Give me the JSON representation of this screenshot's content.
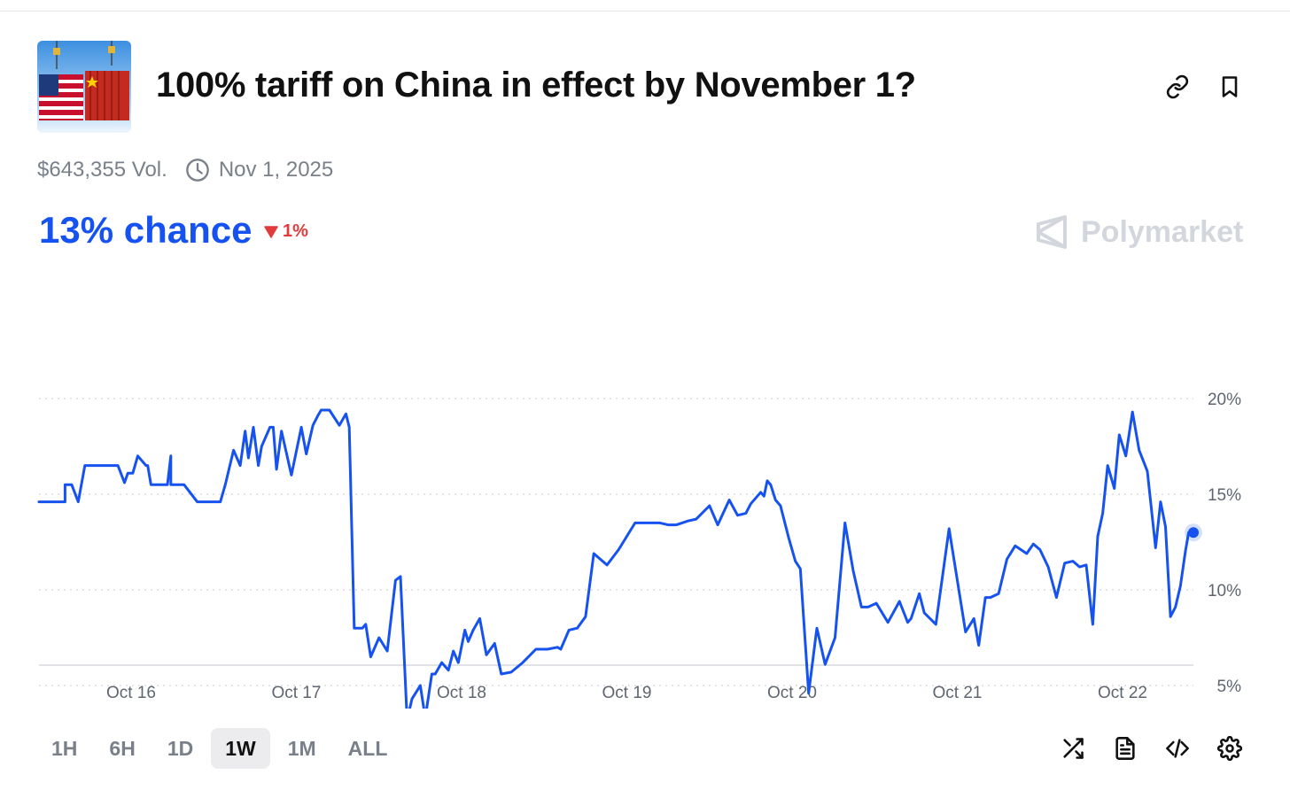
{
  "market": {
    "title": "100% tariff on China in effect by November 1?",
    "volume": "$643,355 Vol.",
    "end_date": "Nov 1, 2025",
    "chance_label": "13% chance",
    "change_label": "1%",
    "brand": "Polymarket"
  },
  "icons": {
    "copy_link": "link-icon",
    "bookmark": "bookmark-icon",
    "clock": "clock-icon",
    "shuffle": "shuffle-icon",
    "document": "document-icon",
    "embed": "code-icon",
    "settings": "gear-icon"
  },
  "time_ranges": [
    {
      "label": "1H",
      "active": false
    },
    {
      "label": "6H",
      "active": false
    },
    {
      "label": "1D",
      "active": false
    },
    {
      "label": "1W",
      "active": true
    },
    {
      "label": "1M",
      "active": false
    },
    {
      "label": "ALL",
      "active": false
    }
  ],
  "colors": {
    "accent": "#1652f0",
    "line": "#1652f0",
    "negative": "#e23b3b",
    "muted": "#7a808a"
  },
  "chart_data": {
    "type": "line",
    "x_ticks": [
      "Oct 16",
      "Oct 17",
      "Oct 18",
      "Oct 19",
      "Oct 20",
      "Oct 21",
      "Oct 22"
    ],
    "y_ticks": [
      20,
      15,
      10,
      5
    ],
    "y_tick_labels": [
      "20%",
      "15%",
      "10%",
      "5%"
    ],
    "ylim": [
      1,
      21
    ],
    "xlim": [
      15.44,
      22.44
    ],
    "grid": true,
    "series": [
      {
        "x": [
          15.44,
          15.6,
          15.6,
          15.64,
          15.68,
          15.72,
          15.79,
          15.82,
          15.92,
          15.96,
          15.98,
          16.01,
          16.04,
          16.09,
          16.1,
          16.12,
          16.17,
          16.22,
          16.24,
          16.24,
          16.29,
          16.32,
          16.4,
          16.43,
          16.43,
          16.47,
          16.52,
          16.54,
          16.57,
          16.62,
          16.66,
          16.69,
          16.71,
          16.74,
          16.77,
          16.79,
          16.84,
          16.86,
          16.88,
          16.91,
          16.97,
          17.03,
          17.06,
          17.1,
          17.13,
          17.15,
          17.2,
          17.26,
          17.3,
          17.32,
          17.35,
          17.4,
          17.42,
          17.45,
          17.5,
          17.55,
          17.6,
          17.63,
          17.67,
          17.7,
          17.75,
          17.78,
          17.82,
          17.84,
          17.88,
          17.92,
          17.95,
          17.98,
          18.02,
          18.04,
          18.07,
          18.11,
          18.15,
          18.2,
          18.24,
          18.3,
          18.37,
          18.45,
          18.52,
          18.58,
          18.6,
          18.65,
          18.7,
          18.75,
          18.8,
          18.88,
          18.95,
          19.05,
          19.12,
          19.2,
          19.25,
          19.3,
          19.37,
          19.42,
          19.5,
          19.55,
          19.62,
          19.67,
          19.72,
          19.75,
          19.78,
          19.81,
          19.83,
          19.85,
          19.87,
          19.9,
          19.93,
          19.98,
          20.02,
          20.05,
          20.1,
          20.15,
          20.2,
          20.26,
          20.32,
          20.37,
          20.42,
          20.46,
          20.51,
          20.58,
          20.65,
          20.7,
          20.72,
          20.77,
          20.8,
          20.87,
          20.95,
          21.05,
          21.1,
          21.13,
          21.17,
          21.2,
          21.25,
          21.3,
          21.35,
          21.42,
          21.46,
          21.5,
          21.55,
          21.6,
          21.65,
          21.7,
          21.74,
          21.78,
          21.82,
          21.85,
          21.88,
          21.91,
          21.95,
          21.98,
          22.02,
          22.06,
          22.1,
          22.15,
          22.2,
          22.23,
          22.26,
          22.29,
          22.32,
          22.35,
          22.38,
          22.4,
          22.44
        ],
        "y": [
          14.6,
          14.6,
          15.5,
          15.5,
          14.6,
          16.5,
          16.5,
          16.5,
          16.5,
          15.6,
          16.1,
          16.1,
          17.0,
          16.5,
          16.5,
          15.5,
          15.5,
          15.5,
          17.0,
          15.5,
          15.5,
          15.5,
          14.6,
          14.6,
          14.6,
          14.6,
          14.6,
          14.6,
          15.5,
          17.3,
          16.5,
          18.3,
          16.9,
          18.5,
          16.5,
          17.5,
          18.5,
          18.5,
          16.3,
          18.3,
          16.0,
          18.5,
          17.1,
          18.6,
          19.1,
          19.4,
          19.4,
          18.6,
          19.2,
          18.5,
          8.0,
          8.0,
          8.2,
          6.5,
          7.5,
          6.8,
          10.5,
          10.7,
          3.2,
          4.3,
          5.0,
          3.3,
          5.6,
          5.6,
          6.2,
          5.8,
          6.8,
          6.2,
          7.9,
          7.3,
          7.9,
          8.5,
          6.6,
          7.2,
          5.6,
          5.7,
          6.2,
          6.9,
          6.9,
          7.0,
          6.9,
          7.9,
          8.0,
          8.6,
          11.9,
          11.3,
          12.1,
          13.5,
          13.5,
          13.5,
          13.4,
          13.4,
          13.6,
          13.7,
          14.4,
          13.4,
          14.7,
          13.9,
          14.0,
          14.5,
          14.8,
          15.1,
          14.9,
          15.7,
          15.5,
          14.7,
          14.4,
          12.7,
          11.5,
          11.1,
          4.6,
          8.0,
          6.1,
          7.5,
          13.5,
          11.0,
          9.1,
          9.1,
          9.3,
          8.3,
          9.4,
          8.3,
          8.5,
          9.8,
          8.8,
          8.2,
          13.2,
          7.8,
          8.5,
          7.1,
          9.6,
          9.6,
          9.8,
          11.6,
          12.3,
          11.9,
          12.4,
          12.1,
          11.2,
          9.6,
          11.4,
          11.5,
          11.2,
          11.3,
          8.2,
          12.8,
          14.0,
          16.5,
          15.3,
          18.1,
          17.0,
          19.3,
          17.3,
          16.2,
          12.2,
          14.6,
          13.3,
          8.6,
          9.1,
          10.2,
          12.0,
          13.0,
          13.0
        ]
      }
    ],
    "last_value": 13.0
  }
}
